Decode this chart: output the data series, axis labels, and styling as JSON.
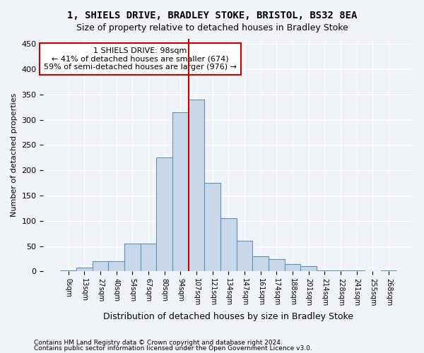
{
  "title_line1": "1, SHIELS DRIVE, BRADLEY STOKE, BRISTOL, BS32 8EA",
  "title_line2": "Size of property relative to detached houses in Bradley Stoke",
  "xlabel": "Distribution of detached houses by size in Bradley Stoke",
  "ylabel": "Number of detached properties",
  "bar_color": "#c8d8e8",
  "bar_edge_color": "#6090b8",
  "bin_labels": [
    "0sqm",
    "13sqm",
    "27sqm",
    "40sqm",
    "54sqm",
    "67sqm",
    "80sqm",
    "94sqm",
    "107sqm",
    "121sqm",
    "134sqm",
    "147sqm",
    "161sqm",
    "174sqm",
    "188sqm",
    "201sqm",
    "214sqm",
    "228sqm",
    "241sqm",
    "255sqm",
    "268sqm"
  ],
  "bar_values": [
    2,
    8,
    20,
    20,
    55,
    55,
    225,
    315,
    340,
    175,
    105,
    60,
    30,
    25,
    15,
    10,
    2,
    2,
    2,
    0,
    2
  ],
  "ylim": [
    0,
    460
  ],
  "yticks": [
    0,
    50,
    100,
    150,
    200,
    250,
    300,
    350,
    400,
    450
  ],
  "property_line_x": 7,
  "annotation_title": "1 SHIELS DRIVE: 98sqm",
  "annotation_line1": "← 41% of detached houses are smaller (674)",
  "annotation_line2": "59% of semi-detached houses are larger (976) →",
  "annotation_box_color": "#ffffff",
  "annotation_box_edge": "#cc0000",
  "vline_color": "#cc0000",
  "footer_line1": "Contains HM Land Registry data © Crown copyright and database right 2024.",
  "footer_line2": "Contains public sector information licensed under the Open Government Licence v3.0.",
  "background_color": "#f0f4f8",
  "grid_color": "#ffffff"
}
